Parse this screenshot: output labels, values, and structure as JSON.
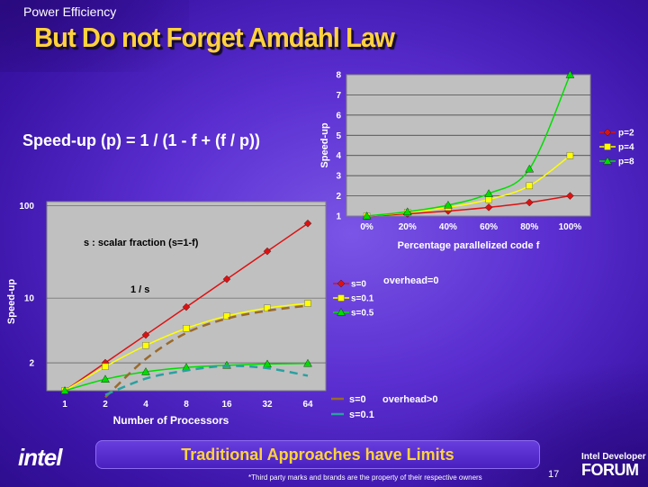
{
  "header": {
    "kicker": "Power Efficiency",
    "title": "But Do not Forget Amdahl Law"
  },
  "formula": "Speed-up (p) = 1 / (1 - f + (f / p))",
  "chart_data": [
    {
      "type": "line",
      "xlabel": "Percentage parallelized code f",
      "ylabel": "Speed-up",
      "categories": [
        "0%",
        "20%",
        "40%",
        "60%",
        "80%",
        "100%"
      ],
      "yticks": [
        "1",
        "2",
        "3",
        "4",
        "5",
        "6",
        "7",
        "8"
      ],
      "ylim": [
        1,
        8
      ],
      "series": [
        {
          "name": "p=2",
          "color": "#dd1111",
          "marker": "diamond",
          "values": [
            1.0,
            1.11,
            1.25,
            1.43,
            1.67,
            2.0
          ]
        },
        {
          "name": "p=4",
          "color": "#ffff00",
          "marker": "square",
          "values": [
            1.0,
            1.18,
            1.43,
            1.82,
            2.5,
            4.0
          ]
        },
        {
          "name": "p=8",
          "color": "#00dd00",
          "marker": "triangle",
          "values": [
            1.0,
            1.21,
            1.54,
            2.11,
            3.33,
            8.0
          ]
        }
      ],
      "legend_position": "right"
    },
    {
      "type": "line",
      "xlabel": "Number of Processors",
      "ylabel": "Speed-up",
      "categories": [
        "1",
        "2",
        "4",
        "8",
        "16",
        "32",
        "64"
      ],
      "yticks": [
        "2",
        "10",
        "100"
      ],
      "yscale": "log",
      "annotations": [
        "s : scalar fraction (s=1-f)",
        "1 / s"
      ],
      "series": [
        {
          "name": "s=0",
          "color": "#dd1111",
          "marker": "diamond",
          "values": [
            1,
            2,
            4,
            8,
            16,
            32,
            64
          ]
        },
        {
          "name": "s=0.1",
          "color": "#ffff00",
          "marker": "square",
          "values": [
            1,
            1.82,
            3.08,
            4.71,
            6.4,
            7.8,
            8.77
          ]
        },
        {
          "name": "s=0.5",
          "color": "#00dd00",
          "marker": "triangle",
          "values": [
            1,
            1.33,
            1.6,
            1.78,
            1.88,
            1.94,
            1.97
          ]
        },
        {
          "name": "s=0",
          "color": "#9a6a2a",
          "dash": true,
          "values": [
            null,
            0.85,
            2.2,
            4.2,
            6.0,
            7.3,
            8.3
          ]
        },
        {
          "name": "s=0.1",
          "color": "#2aa0a0",
          "dash": true,
          "values": [
            null,
            0.9,
            1.35,
            1.65,
            1.85,
            1.75,
            1.45
          ]
        }
      ],
      "legend_groups": [
        {
          "label": "overhead=0",
          "entries": [
            "s=0",
            "s=0.1",
            "s=0.5"
          ]
        },
        {
          "label": "overhead>0",
          "entries": [
            "s=0",
            "s=0.1"
          ]
        }
      ]
    }
  ],
  "footer": {
    "banner": "Traditional Approaches have Limits",
    "footnote": "*Third party marks and brands are the property of their respective owners",
    "page": "17",
    "logo": "intel",
    "forum_top": "Intel Developer",
    "forum_bottom": "FORUM"
  }
}
